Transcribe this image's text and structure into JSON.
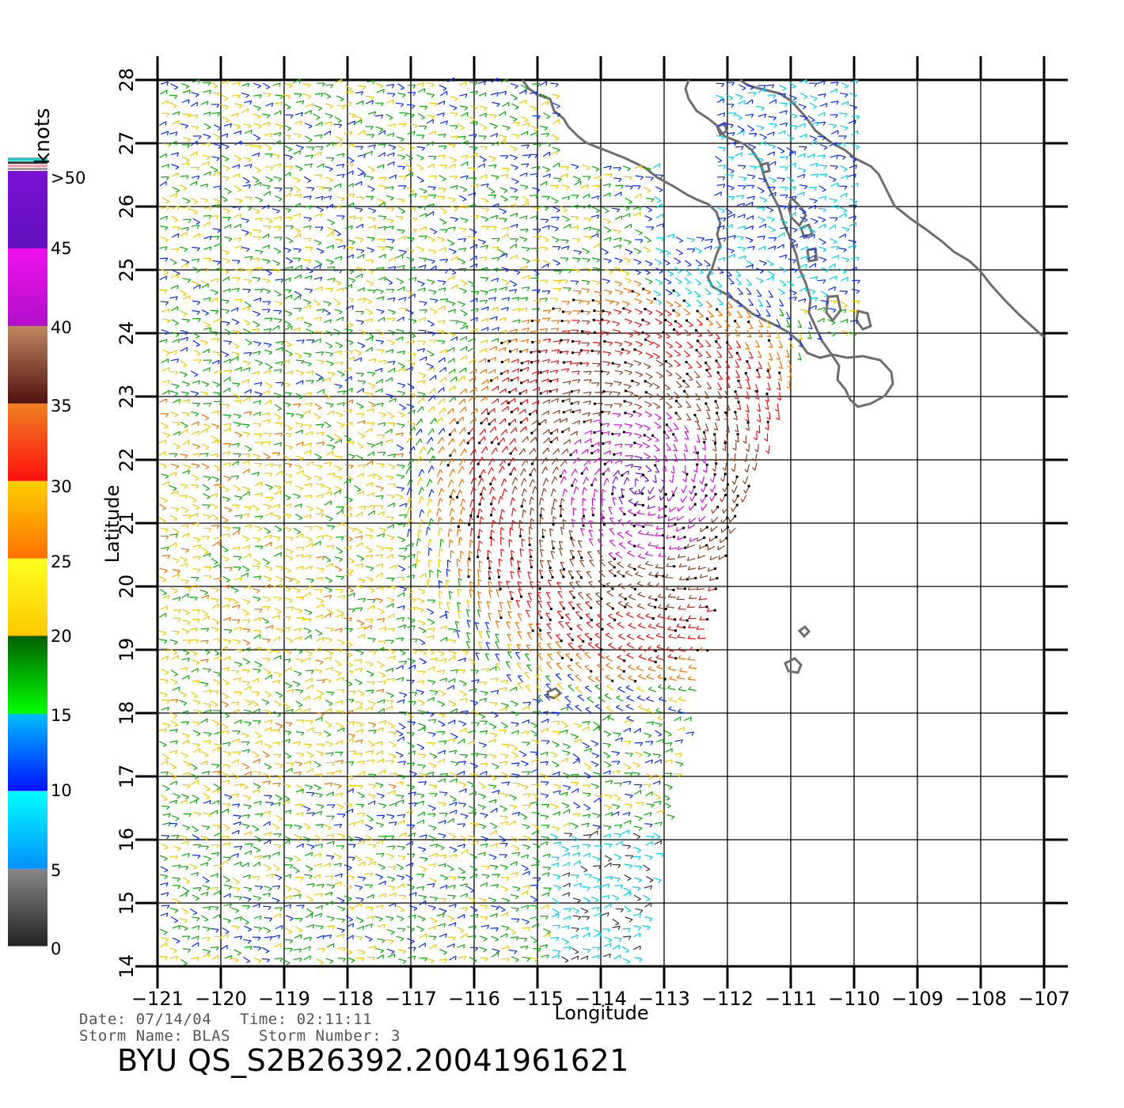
{
  "colorbar": {
    "unit_label": "knots",
    "tick_labels": [
      ">50",
      "45",
      "40",
      "35",
      "30",
      "25",
      "20",
      "15",
      "10",
      "5",
      "0"
    ],
    "colors": {
      "0_5": "#333333",
      "5_10": "#00d8f0",
      "10_15": "#0a2cf0",
      "15_20": "#0aaa0a",
      "20_25": "#f0c800",
      "25_30": "#f07000",
      "30_35": "#f01010",
      "35_40": "#8a4020",
      "40_45": "#e010e0",
      "45_50": "#7010c8"
    }
  },
  "map": {
    "xlabel": "Longitude",
    "ylabel": "Latitude",
    "lon_ticks": [
      "−121",
      "−120",
      "−119",
      "−118",
      "−117",
      "−116",
      "−115",
      "−114",
      "−113",
      "−112",
      "−111",
      "−110",
      "−109",
      "−108",
      "−107"
    ],
    "lat_ticks": [
      "28",
      "27",
      "26",
      "25",
      "24",
      "23",
      "22",
      "21",
      "20",
      "19",
      "18",
      "17",
      "16",
      "15",
      "14"
    ],
    "lon_range": [
      -121,
      -107
    ],
    "lat_range": [
      14,
      28
    ],
    "grid": true,
    "storm_center": {
      "lon": -113.4,
      "lat": 21.6
    }
  },
  "info": {
    "date_line": "Date: 07/14/04   Time: 02:11:11",
    "storm_line": "Storm Name: BLAS   Storm Number: 3",
    "file_id": "BYU QS_S2B26392.20041961621"
  }
}
